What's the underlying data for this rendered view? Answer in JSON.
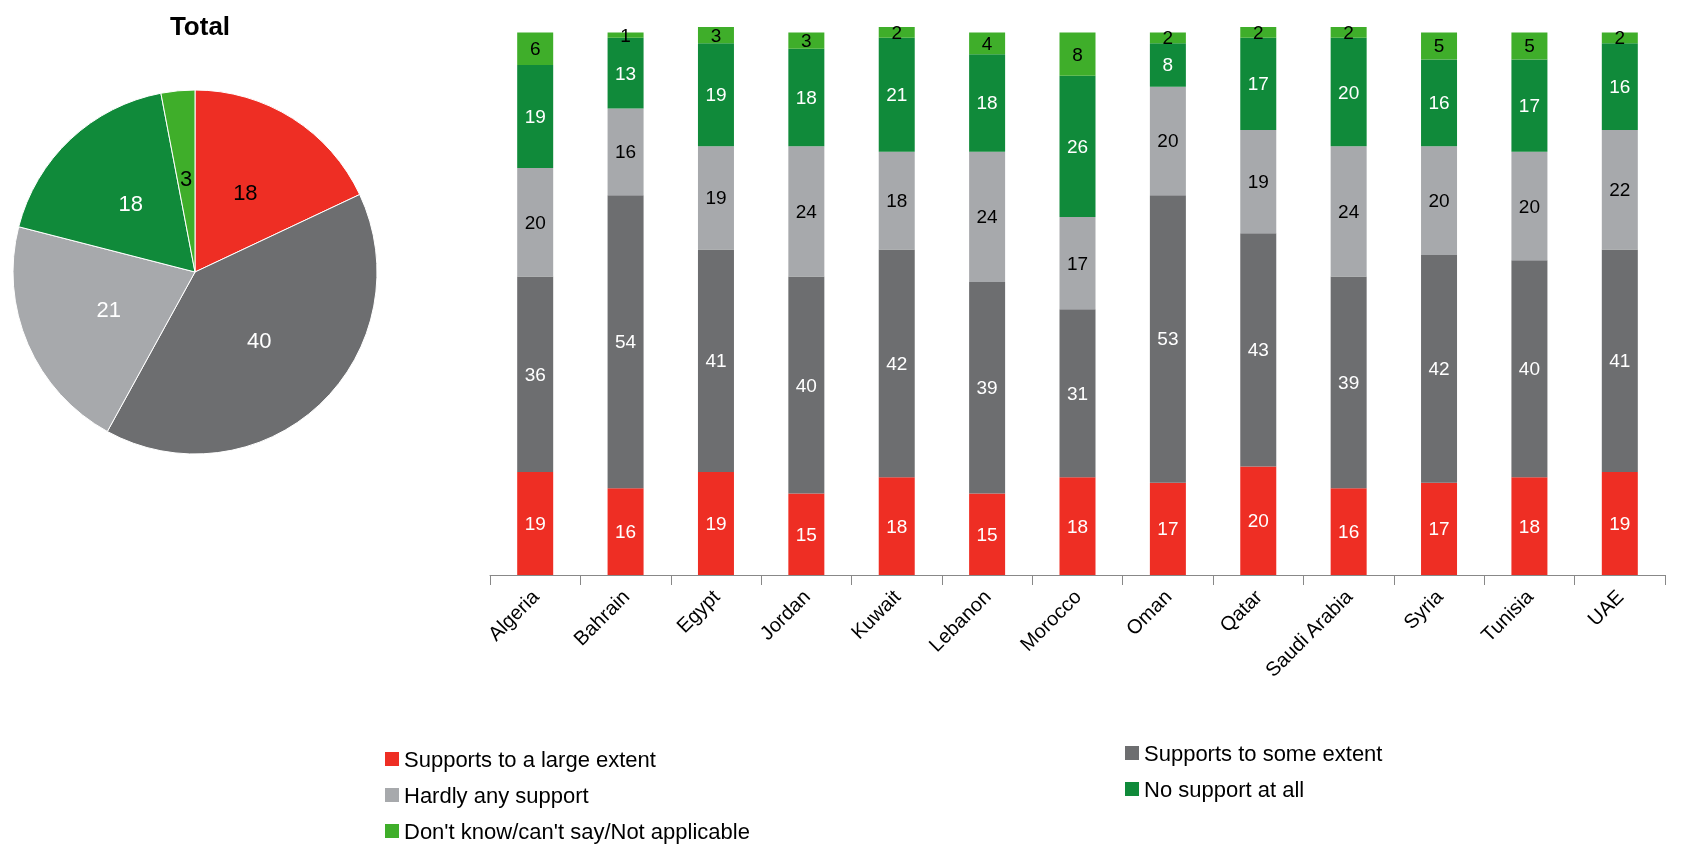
{
  "chart_data": [
    {
      "type": "pie",
      "title": "Total",
      "categories": [
        null,
        null,
        null,
        null,
        null
      ],
      "values": [
        18,
        40,
        21,
        18,
        3
      ],
      "colors": [
        "#ee2e24",
        "#6d6e70",
        "#a7a9ac",
        "#108a3a",
        "#3fae2a"
      ],
      "data_labels": true,
      "legend": false
    },
    {
      "type": "bar",
      "stacked": true,
      "data_labels": true,
      "legend": "bottom",
      "categories": [
        "Algeria",
        "Bahrain",
        "Egypt",
        "Jordan",
        "Kuwait",
        "Lebanon",
        "Morocco",
        "Oman",
        "Qatar",
        "Saudi Arabia",
        "Syria",
        "Tunisia",
        "UAE"
      ],
      "series": [
        {
          "name": "Supports to a large extent",
          "color": "#ee2e24",
          "values": [
            19,
            16,
            19,
            15,
            18,
            15,
            18,
            17,
            20,
            16,
            17,
            18,
            19
          ]
        },
        {
          "name": "Supports to some extent",
          "color": "#6d6e70",
          "values": [
            36,
            54,
            41,
            40,
            42,
            39,
            31,
            53,
            43,
            39,
            42,
            40,
            41
          ]
        },
        {
          "name": "Hardly any support",
          "color": "#a7a9ac",
          "values": [
            20,
            16,
            19,
            24,
            18,
            24,
            17,
            20,
            19,
            24,
            20,
            20,
            22
          ]
        },
        {
          "name": "No support at all",
          "color": "#108a3a",
          "values": [
            19,
            13,
            19,
            18,
            21,
            18,
            26,
            8,
            17,
            20,
            16,
            17,
            16
          ]
        },
        {
          "name": "Don't know/can't say/Not applicable",
          "color": "#3fae2a",
          "values": [
            6,
            1,
            3,
            3,
            2,
            4,
            8,
            2,
            2,
            2,
            5,
            5,
            2
          ]
        }
      ]
    }
  ]
}
